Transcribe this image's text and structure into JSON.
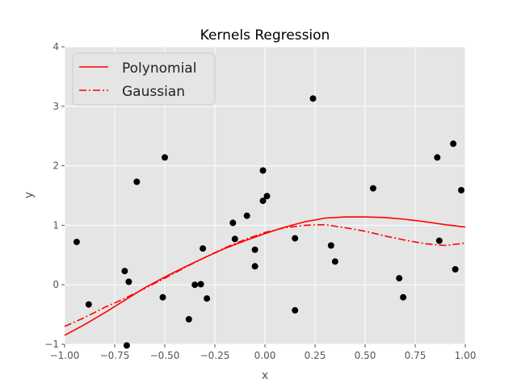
{
  "chart_data": {
    "type": "scatter",
    "title": "Kernels Regression",
    "xlabel": "x",
    "ylabel": "y",
    "xlim": [
      -1.0,
      1.0
    ],
    "ylim": [
      -1,
      4
    ],
    "xticks": [
      "−1.00",
      "−0.75",
      "−0.50",
      "−0.25",
      "0.00",
      "0.25",
      "0.50",
      "0.75",
      "1.00"
    ],
    "xtick_values": [
      -1.0,
      -0.75,
      -0.5,
      -0.25,
      0.0,
      0.25,
      0.5,
      0.75,
      1.0
    ],
    "yticks": [
      "−1",
      "0",
      "1",
      "2",
      "3",
      "4"
    ],
    "ytick_values": [
      -1,
      0,
      1,
      2,
      3,
      4
    ],
    "grid": true,
    "legend_position": "top-left",
    "colors": {
      "background": "#e5e5e5",
      "grid": "#ffffff",
      "line": "#ff0000",
      "points": "#000000"
    },
    "points": {
      "x": [
        -0.94,
        -0.88,
        -0.7,
        -0.68,
        -0.64,
        -0.51,
        -0.5,
        -0.38,
        -0.35,
        -0.32,
        -0.31,
        -0.29,
        -0.16,
        -0.15,
        -0.09,
        -0.05,
        -0.05,
        -0.01,
        -0.01,
        0.01,
        0.15,
        0.15,
        0.24,
        0.33,
        0.35,
        0.54,
        0.67,
        0.69,
        0.86,
        0.87,
        0.94,
        0.95,
        0.98,
        -0.69
      ],
      "y": [
        0.72,
        -0.33,
        0.23,
        0.05,
        1.73,
        -0.21,
        2.14,
        -0.58,
        0.0,
        0.01,
        0.61,
        -0.23,
        1.04,
        0.77,
        1.16,
        0.59,
        0.31,
        1.92,
        1.41,
        1.49,
        0.78,
        -0.43,
        3.13,
        0.66,
        0.39,
        1.62,
        0.11,
        -0.21,
        2.14,
        0.74,
        2.37,
        0.26,
        1.59,
        -1.02
      ]
    },
    "series": [
      {
        "name": "Polynomial",
        "style": "solid",
        "x": [
          -1.0,
          -0.9,
          -0.8,
          -0.7,
          -0.6,
          -0.5,
          -0.4,
          -0.3,
          -0.2,
          -0.1,
          0.0,
          0.1,
          0.2,
          0.3,
          0.4,
          0.5,
          0.6,
          0.7,
          0.8,
          0.9,
          1.0
        ],
        "y": [
          -0.85,
          -0.67,
          -0.47,
          -0.26,
          -0.05,
          0.13,
          0.3,
          0.46,
          0.61,
          0.74,
          0.86,
          0.97,
          1.06,
          1.12,
          1.14,
          1.14,
          1.13,
          1.1,
          1.06,
          1.01,
          0.97
        ]
      },
      {
        "name": "Gaussian",
        "style": "dashdot",
        "x": [
          -1.0,
          -0.9,
          -0.8,
          -0.7,
          -0.6,
          -0.5,
          -0.4,
          -0.3,
          -0.2,
          -0.1,
          0.0,
          0.1,
          0.2,
          0.3,
          0.4,
          0.5,
          0.6,
          0.7,
          0.8,
          0.9,
          1.0
        ],
        "y": [
          -0.7,
          -0.55,
          -0.38,
          -0.23,
          -0.06,
          0.11,
          0.29,
          0.46,
          0.62,
          0.76,
          0.88,
          0.96,
          1.0,
          1.01,
          0.96,
          0.9,
          0.82,
          0.75,
          0.69,
          0.66,
          0.7
        ]
      }
    ]
  }
}
